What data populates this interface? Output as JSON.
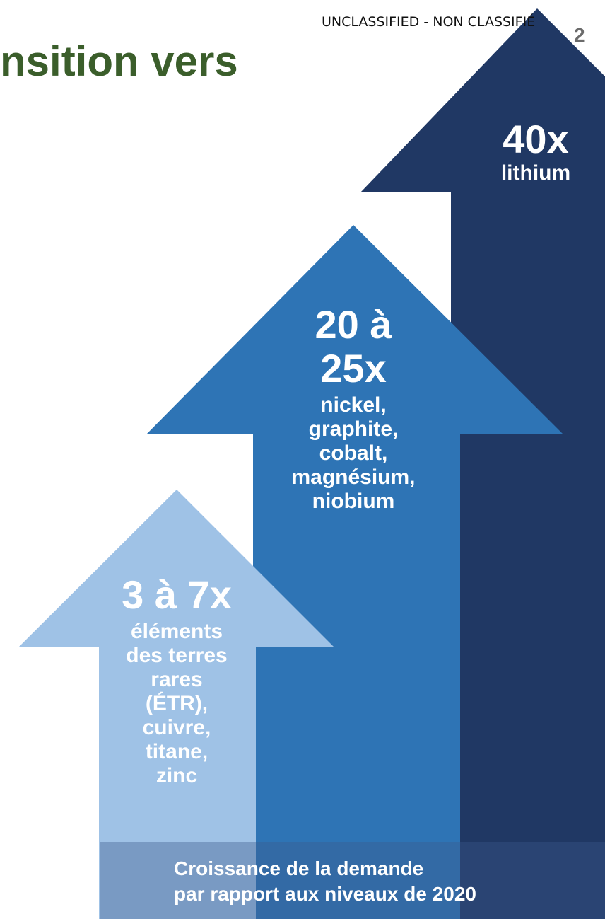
{
  "header": {
    "classification": "UNCLASSIFIED - NON CLASSIFIÉ",
    "page_number": "2",
    "title_fragment": "nsition vers"
  },
  "arrows": [
    {
      "multiplier": "3 à 7x",
      "minerals": [
        "éléments",
        "des terres",
        "rares",
        "(ÉTR),",
        "cuivre,",
        "titane,",
        "zinc"
      ],
      "color": "#9fc2e6"
    },
    {
      "multiplier_lines": [
        "20 à",
        "25x"
      ],
      "minerals": [
        "nickel,",
        "graphite,",
        "cobalt,",
        "magnésium,",
        "niobium"
      ],
      "color": "#2e74b5"
    },
    {
      "multiplier": "40x",
      "minerals": [
        "lithium"
      ],
      "color": "#203864"
    }
  ],
  "footer": {
    "lines": [
      "Croissance de la demande",
      "par rapport aux niveaux de 2020"
    ]
  }
}
